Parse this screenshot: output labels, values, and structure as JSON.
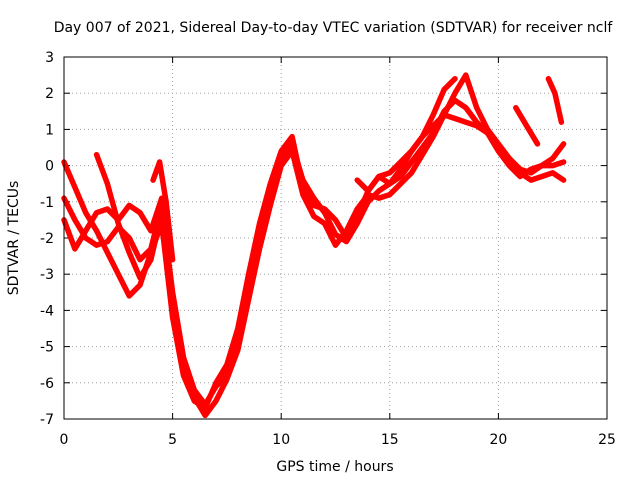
{
  "chart_data": {
    "type": "scatter",
    "title": "Day 007 of 2021, Sidereal Day-to-day VTEC variation (SDTVAR) for receiver nclf",
    "xlabel": "GPS time / hours",
    "ylabel": "SDTVAR / TECUs",
    "xlim": [
      0,
      25
    ],
    "ylim": [
      -7,
      3
    ],
    "xticks": [
      0,
      5,
      10,
      15,
      20,
      25
    ],
    "yticks": [
      -7,
      -6,
      -5,
      -4,
      -3,
      -2,
      -1,
      0,
      1,
      2,
      3
    ],
    "xtick_labels": [
      "0",
      "5",
      "10",
      "15",
      "20",
      "25"
    ],
    "ytick_labels": [
      "-7",
      "-6",
      "-5",
      "-4",
      "-3",
      "-2",
      "-1",
      "0",
      "1",
      "2",
      "3"
    ],
    "grid": true,
    "marker": "plus",
    "color": "#ff0000",
    "series": [
      {
        "name": "track-1",
        "x": [
          0.0,
          0.5,
          1.0,
          1.5,
          2.0,
          2.5,
          3.0,
          3.5,
          4.0,
          4.5,
          5.0,
          5.5,
          6.0,
          6.5,
          7.0,
          7.5,
          8.0,
          8.5,
          9.0,
          9.5,
          10.0,
          10.5,
          11.0,
          11.5,
          12.0,
          12.5,
          13.0,
          13.5,
          14.0,
          14.5,
          15.0,
          15.5,
          16.0,
          16.5,
          17.0,
          17.5,
          18.0,
          18.5,
          19.0,
          19.5,
          20.0,
          20.5,
          21.0,
          21.5,
          22.0,
          22.5,
          23.0
        ],
        "y": [
          0.1,
          -0.6,
          -1.3,
          -1.8,
          -2.4,
          -3.0,
          -3.6,
          -3.3,
          -2.4,
          -1.6,
          -4.2,
          -5.8,
          -6.5,
          -6.7,
          -6.0,
          -5.5,
          -4.5,
          -3.0,
          -1.6,
          -0.5,
          0.4,
          0.8,
          -0.6,
          -1.1,
          -1.2,
          -1.5,
          -2.0,
          -1.4,
          -0.7,
          -0.3,
          -0.2,
          0.1,
          0.4,
          0.8,
          1.1,
          1.4,
          1.3,
          1.2,
          1.1,
          0.9,
          0.4,
          0.0,
          -0.3,
          -0.1,
          0.0,
          0.0,
          0.1
        ]
      },
      {
        "name": "track-2",
        "x": [
          0.0,
          0.5,
          1.0,
          1.5,
          2.0,
          2.5,
          3.0,
          3.5,
          4.0,
          4.5,
          5.0,
          5.5,
          6.0,
          6.5,
          7.0,
          7.5,
          8.0,
          8.5,
          9.0,
          9.5,
          10.0,
          10.5,
          11.0,
          11.5,
          12.0,
          12.5,
          13.0,
          13.5,
          14.0,
          14.5,
          15.0,
          15.5,
          16.0,
          16.5,
          17.0,
          17.5,
          18.0,
          18.5,
          19.0,
          19.5,
          20.0,
          20.5,
          21.0,
          21.5,
          22.0,
          22.5,
          23.0
        ],
        "y": [
          -0.9,
          -1.5,
          -2.0,
          -2.2,
          -2.1,
          -1.7,
          -2.0,
          -2.6,
          -2.3,
          -1.1,
          -3.5,
          -5.3,
          -6.2,
          -6.6,
          -6.1,
          -5.8,
          -4.8,
          -3.3,
          -1.9,
          -0.9,
          0.2,
          0.6,
          -0.4,
          -0.9,
          -1.3,
          -1.9,
          -2.1,
          -1.6,
          -1.0,
          -0.7,
          -0.5,
          -0.3,
          0.1,
          0.5,
          0.9,
          1.5,
          1.8,
          1.6,
          1.2,
          0.9,
          0.5,
          0.2,
          -0.1,
          -0.2,
          0.0,
          0.2,
          0.6
        ]
      },
      {
        "name": "track-3",
        "x": [
          0.0,
          0.5,
          1.0,
          1.5,
          2.0,
          2.5,
          3.0,
          3.5,
          4.0,
          4.5,
          5.0,
          5.5,
          6.0,
          6.5,
          7.0,
          7.5,
          8.0,
          8.5,
          9.0,
          9.5,
          10.0,
          10.5,
          11.0,
          11.5,
          12.0,
          12.5,
          13.0,
          13.5,
          14.0,
          14.5,
          15.0,
          15.5,
          16.0,
          16.5,
          17.0,
          17.5,
          18.0,
          18.5,
          19.0,
          19.5,
          20.0,
          20.5,
          21.0,
          21.5,
          22.0,
          22.5,
          23.0
        ],
        "y": [
          -1.5,
          -2.3,
          -1.8,
          -1.3,
          -1.2,
          -1.5,
          -1.1,
          -1.3,
          -1.8,
          -0.9,
          -4.0,
          -5.6,
          -6.4,
          -6.9,
          -6.5,
          -5.9,
          -5.1,
          -3.7,
          -2.3,
          -1.1,
          0.0,
          0.4,
          -0.8,
          -1.4,
          -1.6,
          -2.2,
          -1.8,
          -1.2,
          -0.8,
          -0.9,
          -0.8,
          -0.5,
          -0.2,
          0.3,
          0.8,
          1.4,
          2.0,
          2.5,
          1.6,
          1.0,
          0.6,
          0.2,
          -0.2,
          -0.4,
          -0.3,
          -0.2,
          -0.4
        ]
      },
      {
        "name": "track-4",
        "x": [
          1.5,
          2.0,
          2.5,
          3.0,
          3.5,
          4.0,
          4.5
        ],
        "y": [
          0.3,
          -0.5,
          -1.6,
          -2.4,
          -3.1,
          -2.6,
          -1.3
        ]
      },
      {
        "name": "track-5",
        "x": [
          4.1,
          4.4,
          4.7,
          5.0
        ],
        "y": [
          -0.4,
          0.1,
          -1.0,
          -2.6
        ]
      },
      {
        "name": "track-6",
        "x": [
          13.5,
          14.0,
          14.5,
          15.0,
          15.5,
          16.0,
          16.5,
          17.0,
          17.5,
          18.0
        ],
        "y": [
          -0.4,
          -0.7,
          -0.3,
          -0.5,
          -0.1,
          0.4,
          0.8,
          1.4,
          2.1,
          2.4
        ]
      },
      {
        "name": "track-7",
        "x": [
          20.8,
          21.3,
          21.8
        ],
        "y": [
          1.6,
          1.1,
          0.6
        ]
      },
      {
        "name": "track-8",
        "x": [
          22.3,
          22.6,
          22.9
        ],
        "y": [
          2.4,
          2.0,
          1.2
        ]
      }
    ]
  }
}
